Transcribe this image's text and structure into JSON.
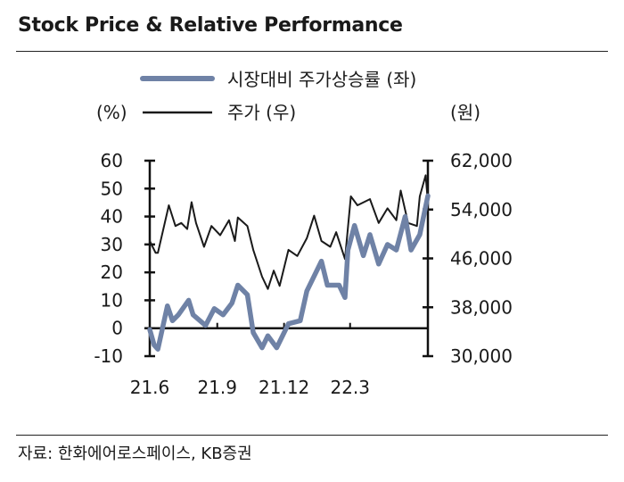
{
  "title": "Stock Price & Relative Performance",
  "source": "자료: 한화에어로스페이스, KB증권",
  "chart_data": {
    "type": "line",
    "left_axis_unit": "(%)",
    "right_axis_unit": "(원)",
    "left_ylim": [
      -10,
      60
    ],
    "left_ticks": [
      "60",
      "50",
      "40",
      "30",
      "20",
      "10",
      "0",
      "-10"
    ],
    "left_tick_values": [
      60,
      50,
      40,
      30,
      20,
      10,
      0,
      -10
    ],
    "right_ylim": [
      30000,
      62000
    ],
    "right_ticks": [
      "62,000",
      "54,000",
      "46,000",
      "38,000",
      "30,000"
    ],
    "right_tick_values": [
      62000,
      54000,
      46000,
      38000,
      30000
    ],
    "x_range": [
      "2021-06-01",
      "2022-06-15"
    ],
    "x_ticks": [
      {
        "label": "21.6",
        "date": "2021-06-01"
      },
      {
        "label": "21.9",
        "date": "2021-09-01"
      },
      {
        "label": "21.12",
        "date": "2021-12-01"
      },
      {
        "label": "22.3",
        "date": "2022-03-01"
      }
    ],
    "legend_position": "top",
    "series": [
      {
        "name": "시장대비 주가상승률 (좌)",
        "axis": "left",
        "color": "#6f82a6",
        "points": [
          [
            "2021-06-01",
            -0.5
          ],
          [
            "2021-06-07",
            -6
          ],
          [
            "2021-06-12",
            -7.5
          ],
          [
            "2021-06-25",
            8
          ],
          [
            "2021-07-02",
            2.7
          ],
          [
            "2021-07-10",
            4.8
          ],
          [
            "2021-07-24",
            10
          ],
          [
            "2021-07-30",
            4.8
          ],
          [
            "2021-08-16",
            1
          ],
          [
            "2021-08-28",
            7
          ],
          [
            "2021-09-09",
            4.8
          ],
          [
            "2021-09-21",
            9
          ],
          [
            "2021-09-29",
            15.4
          ],
          [
            "2021-10-12",
            12
          ],
          [
            "2021-10-20",
            -1.6
          ],
          [
            "2021-11-01",
            -7
          ],
          [
            "2021-11-09",
            -2.7
          ],
          [
            "2021-11-21",
            -7
          ],
          [
            "2021-12-07",
            1.6
          ],
          [
            "2021-12-23",
            2.7
          ],
          [
            "2022-01-01",
            13.3
          ],
          [
            "2022-01-21",
            24
          ],
          [
            "2022-01-29",
            15.4
          ],
          [
            "2022-02-14",
            15.4
          ],
          [
            "2022-02-22",
            11
          ],
          [
            "2022-02-26",
            28
          ],
          [
            "2022-03-07",
            36.8
          ],
          [
            "2022-03-19",
            26
          ],
          [
            "2022-03-28",
            33.5
          ],
          [
            "2022-04-09",
            23
          ],
          [
            "2022-04-21",
            30
          ],
          [
            "2022-05-03",
            28
          ],
          [
            "2022-05-15",
            40
          ],
          [
            "2022-05-23",
            28
          ],
          [
            "2022-06-04",
            33.5
          ],
          [
            "2022-06-15",
            47.4
          ]
        ]
      },
      {
        "name": "주가 (우)",
        "axis": "right",
        "color": "#1a1a1a",
        "points": [
          [
            "2021-06-01",
            48850
          ],
          [
            "2021-06-09",
            46900
          ],
          [
            "2021-06-12",
            46900
          ],
          [
            "2021-06-27",
            54700
          ],
          [
            "2021-07-06",
            51300
          ],
          [
            "2021-07-14",
            51800
          ],
          [
            "2021-07-22",
            50800
          ],
          [
            "2021-07-28",
            55200
          ],
          [
            "2021-08-03",
            51800
          ],
          [
            "2021-08-14",
            47900
          ],
          [
            "2021-08-24",
            51300
          ],
          [
            "2021-09-05",
            49800
          ],
          [
            "2021-09-17",
            52250
          ],
          [
            "2021-09-25",
            48850
          ],
          [
            "2021-09-29",
            52700
          ],
          [
            "2021-10-12",
            51300
          ],
          [
            "2021-10-20",
            47400
          ],
          [
            "2021-11-01",
            43000
          ],
          [
            "2021-11-09",
            41000
          ],
          [
            "2021-11-17",
            44000
          ],
          [
            "2021-11-25",
            41500
          ],
          [
            "2021-12-07",
            47400
          ],
          [
            "2021-12-19",
            46400
          ],
          [
            "2022-01-01",
            49300
          ],
          [
            "2022-01-11",
            53000
          ],
          [
            "2022-01-21",
            48850
          ],
          [
            "2022-02-02",
            47900
          ],
          [
            "2022-02-10",
            50300
          ],
          [
            "2022-02-22",
            45900
          ],
          [
            "2022-03-02",
            56150
          ],
          [
            "2022-03-11",
            54700
          ],
          [
            "2022-03-28",
            55700
          ],
          [
            "2022-04-09",
            51800
          ],
          [
            "2022-04-21",
            54200
          ],
          [
            "2022-05-03",
            52250
          ],
          [
            "2022-05-09",
            57100
          ],
          [
            "2022-05-19",
            51800
          ],
          [
            "2022-05-31",
            51300
          ],
          [
            "2022-06-04",
            56150
          ],
          [
            "2022-06-12",
            59600
          ],
          [
            "2022-06-15",
            55200
          ]
        ]
      }
    ]
  }
}
